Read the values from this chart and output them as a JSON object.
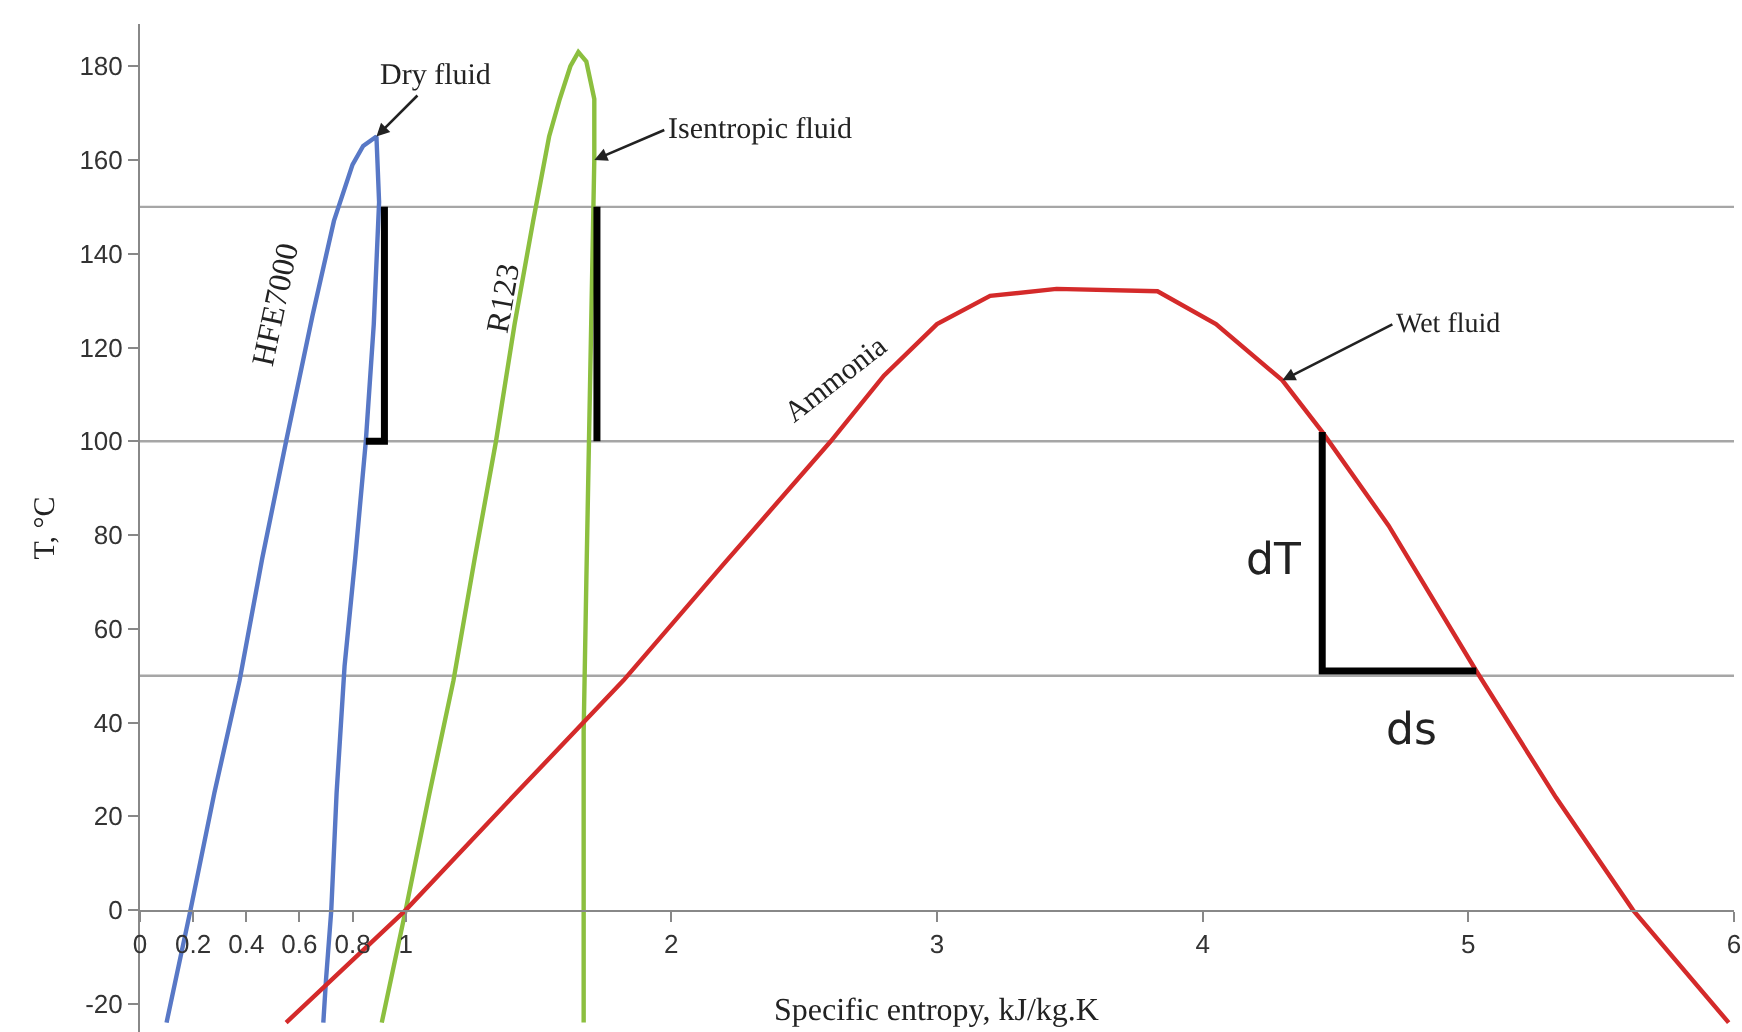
{
  "chart_data": {
    "type": "line",
    "xlabel": "Specific entropy, kJ/kg.K",
    "ylabel": "T, °C",
    "xlim": [
      0,
      6
    ],
    "xticks": [
      0,
      0.2,
      0.4,
      0.6,
      0.8,
      1,
      2,
      3,
      4,
      5,
      6
    ],
    "ylim": [
      -26,
      189
    ],
    "yticks": [
      -20,
      0,
      20,
      40,
      60,
      80,
      100,
      120,
      140,
      160,
      180
    ],
    "grid": false,
    "marker": "none",
    "line_style": "solid",
    "series": [
      {
        "color": "#5878c6",
        "x": [
          0.1,
          0.19,
          0.28,
          0.375,
          0.46,
          0.55,
          0.65,
          0.73,
          0.8,
          0.84,
          0.89,
          0.9,
          0.88,
          0.85,
          0.81,
          0.77,
          0.74,
          0.72,
          0.7,
          0.69
        ],
        "values": [
          -24,
          0,
          25,
          49,
          75,
          100,
          127,
          147,
          159,
          163,
          165,
          151,
          125,
          100,
          75,
          52,
          25,
          0,
          -15,
          -24
        ]
      },
      {
        "color": "#8cbf3f",
        "x": [
          0.91,
          1.0,
          1.09,
          1.18,
          1.26,
          1.34,
          1.41,
          1.48,
          1.54,
          1.58,
          1.62,
          1.65,
          1.68,
          1.71,
          1.71,
          1.7,
          1.69,
          1.68,
          1.67,
          1.67,
          1.67
        ],
        "values": [
          -24,
          0,
          25,
          49,
          75,
          100,
          125,
          147,
          165,
          173,
          180,
          183,
          181,
          173,
          160,
          130,
          100,
          70,
          38,
          0,
          -24
        ]
      },
      {
        "color": "#d42a2a",
        "x": [
          0.55,
          1.0,
          1.4,
          1.82,
          2.2,
          2.6,
          2.8,
          3.0,
          3.2,
          3.45,
          3.83,
          4.05,
          4.3,
          4.45,
          4.7,
          5.03,
          5.33,
          5.62,
          5.98
        ],
        "values": [
          -24,
          0,
          24,
          49,
          74,
          100,
          114,
          125,
          131,
          132.5,
          132,
          125,
          113,
          102,
          82,
          51,
          24,
          0,
          -24
        ]
      },
      {
        "color": "#000000",
        "x": [
          0.85,
          0.92,
          0.92
        ],
        "values": [
          100,
          100,
          150
        ]
      },
      {
        "color": "#000000",
        "x": [
          1.72,
          1.72
        ],
        "values": [
          100,
          150
        ]
      },
      {
        "color": "#000000",
        "x": [
          4.45,
          4.45,
          5.03
        ],
        "values": [
          102,
          51,
          51
        ]
      }
    ],
    "ref_lines": [
      {
        "axis": "y",
        "value": 50,
        "color": "#a6a6a6"
      },
      {
        "axis": "y",
        "value": 100,
        "color": "#a6a6a6"
      },
      {
        "axis": "y",
        "value": 150,
        "color": "#a6a6a6"
      }
    ],
    "annotations": [
      {
        "text": "Dry fluid",
        "x": 0.89,
        "y": 165
      },
      {
        "text": "Isentropic fluid",
        "x": 1.71,
        "y": 160
      },
      {
        "text": "Wet fluid",
        "x": 4.3,
        "y": 113
      },
      "HFE7000",
      "R123",
      "Ammonia",
      "dT",
      "ds"
    ]
  }
}
